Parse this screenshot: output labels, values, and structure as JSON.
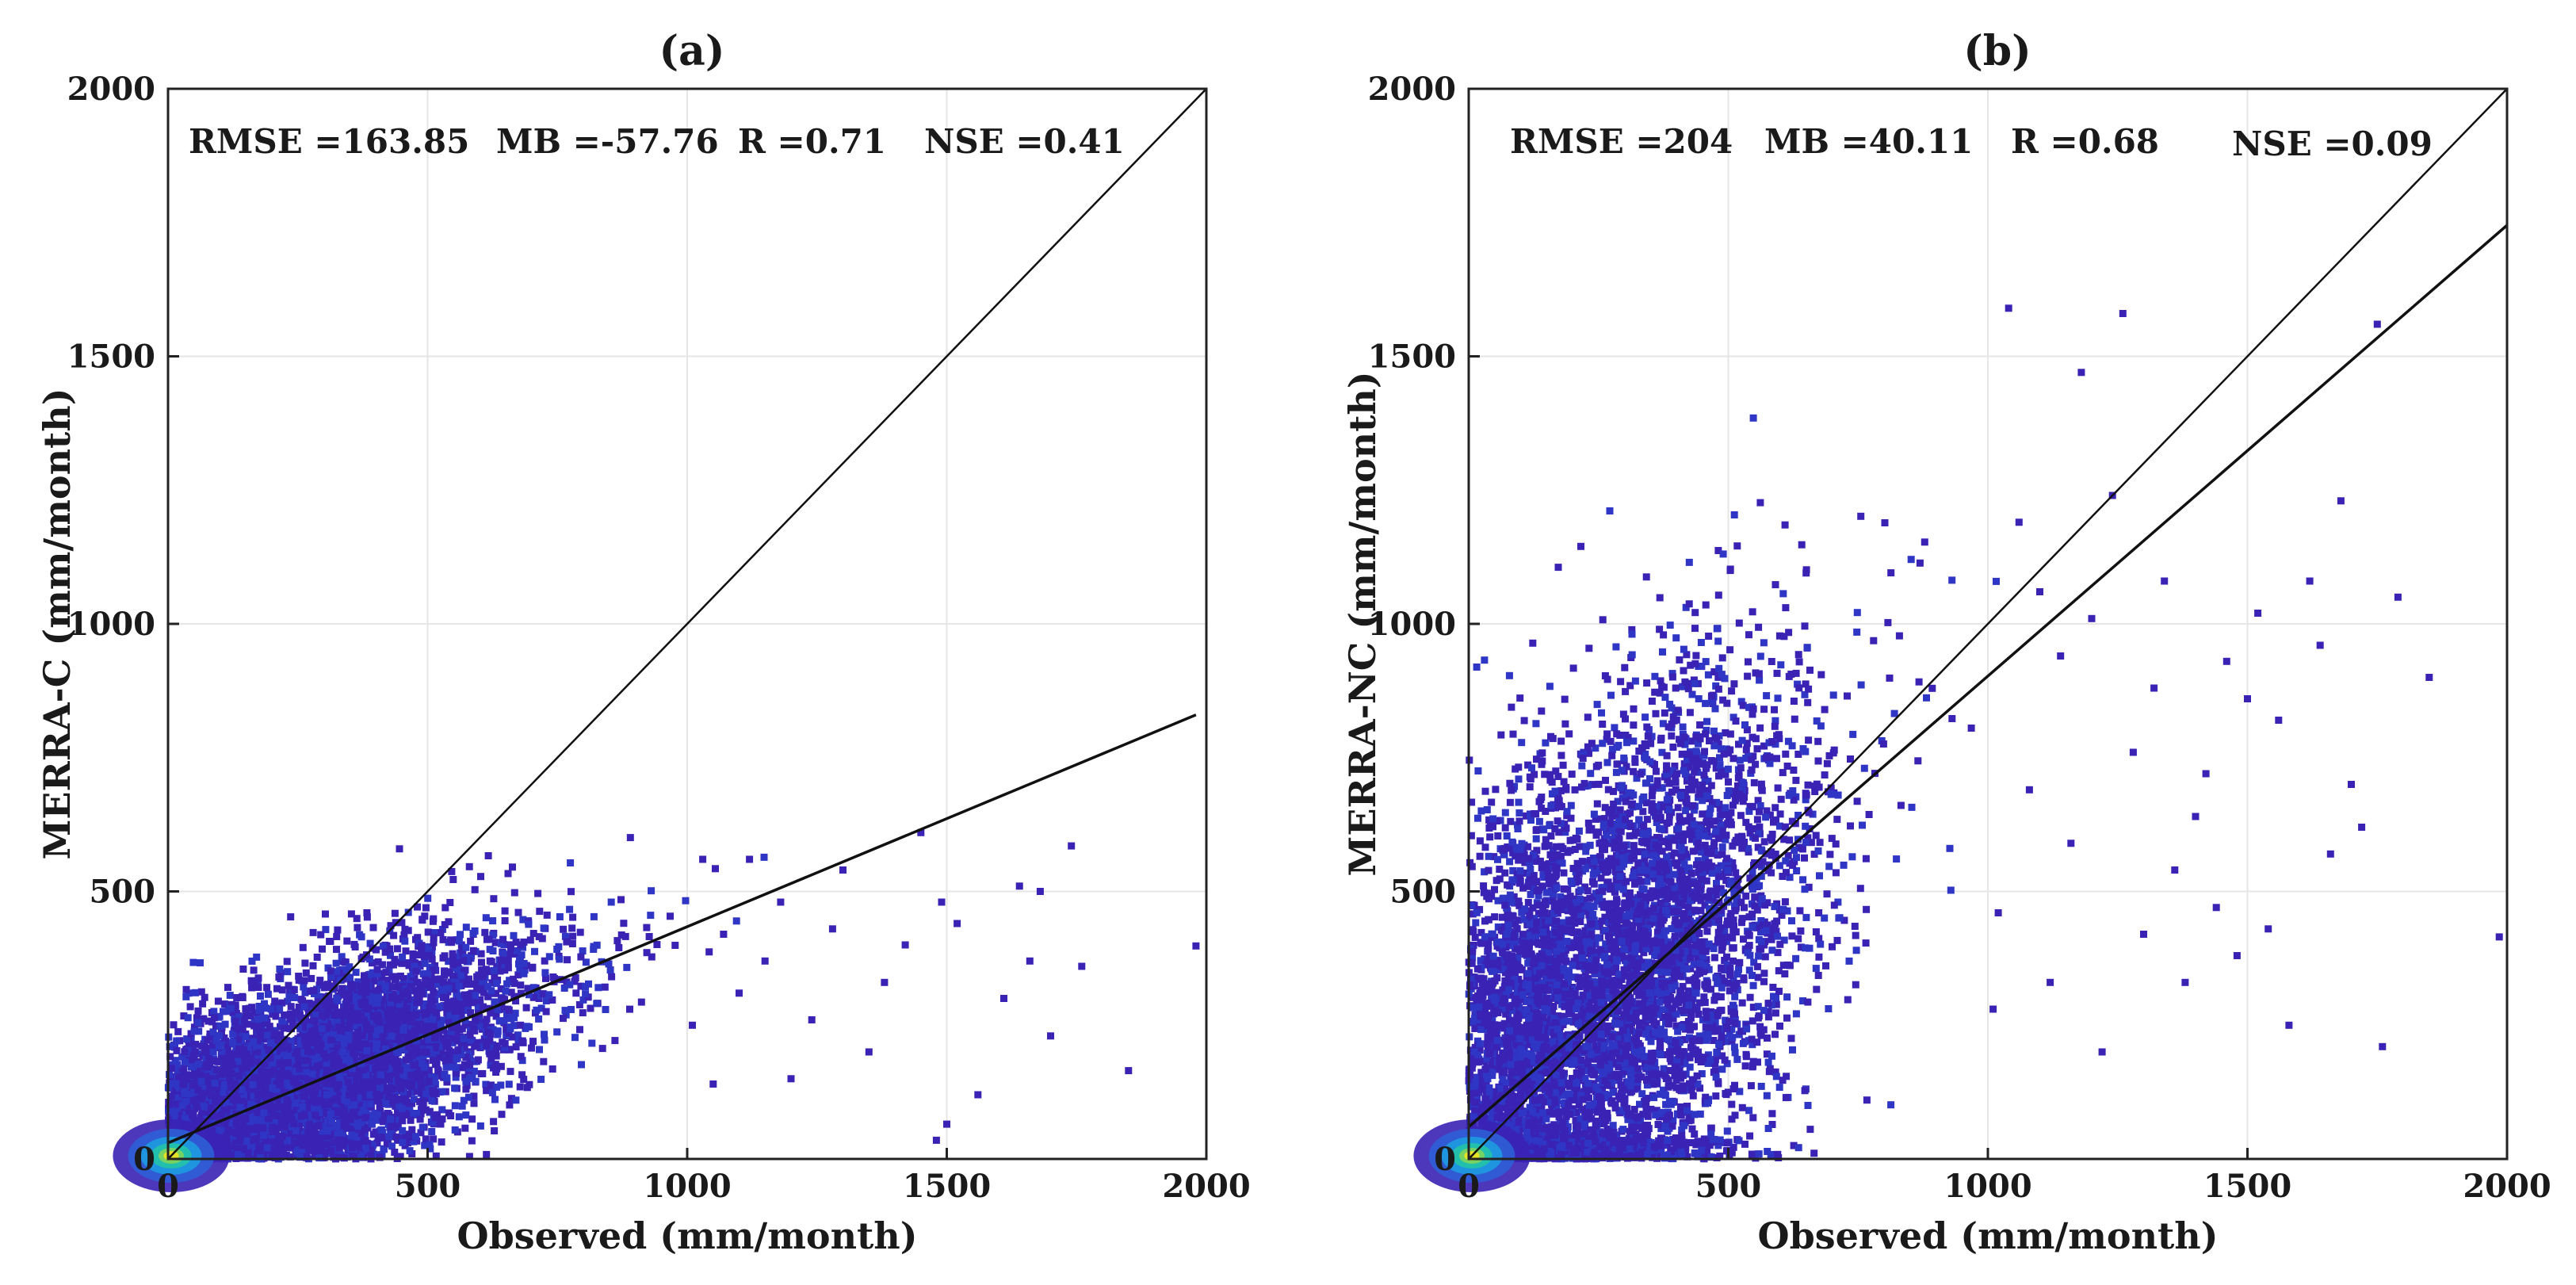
{
  "colors": {
    "point": "#3a22b5",
    "point_dense": "#2f35c4",
    "line": "#111111",
    "grid": "#e6e6e6",
    "density_scale": [
      "#3a22b5",
      "#2f5fd6",
      "#1e9be0",
      "#22c3a6",
      "#7fd45a",
      "#f2e21e"
    ]
  },
  "chart_data": [
    {
      "type": "scatter",
      "title": "(a)",
      "xlabel": "Observed (mm/month)",
      "ylabel": "MERRA-C (mm/month)",
      "xlim": [
        0,
        2000
      ],
      "ylim": [
        0,
        2000
      ],
      "xticks": [
        0,
        500,
        1000,
        1500,
        2000
      ],
      "yticks": [
        0,
        500,
        1000,
        1500,
        2000
      ],
      "grid": true,
      "stats": {
        "rmse": "RMSE =163.85",
        "mb": "MB =-57.76",
        "r": "R =0.71",
        "nse": "NSE =0.41"
      },
      "identity_line": {
        "x": [
          0,
          2000
        ],
        "y": [
          0,
          2000
        ]
      },
      "fit_line": {
        "x": [
          0,
          1980
        ],
        "y": [
          30,
          830
        ]
      },
      "point_cloud": {
        "n": 6000,
        "x_mean": 330,
        "x_sd": 210,
        "y_slope": 0.41,
        "y_intercept": 30,
        "y_sd": 95,
        "y_max": 660,
        "x_max": 1990
      },
      "outliers": [
        [
          1980,
          398
        ],
        [
          1850,
          165
        ],
        [
          1760,
          360
        ],
        [
          1740,
          585
        ],
        [
          1680,
          500
        ],
        [
          1660,
          370
        ],
        [
          1640,
          510
        ],
        [
          1610,
          300
        ],
        [
          1560,
          120
        ],
        [
          1520,
          440
        ],
        [
          1490,
          480
        ],
        [
          1450,
          610
        ],
        [
          1420,
          400
        ],
        [
          1380,
          330
        ],
        [
          1350,
          200
        ],
        [
          1300,
          540
        ],
        [
          1280,
          430
        ],
        [
          1240,
          260
        ],
        [
          1200,
          150
        ],
        [
          1180,
          480
        ],
        [
          1150,
          370
        ],
        [
          1120,
          560
        ],
        [
          1100,
          310
        ],
        [
          1070,
          420
        ],
        [
          1050,
          140
        ],
        [
          1030,
          560
        ],
        [
          1010,
          250
        ],
        [
          1500,
          65
        ],
        [
          1480,
          35
        ],
        [
          1700,
          230
        ]
      ]
    },
    {
      "type": "scatter",
      "title": "(b)",
      "xlabel": "Observed (mm/month)",
      "ylabel": "MERRA-NC (mm/month)",
      "xlim": [
        0,
        2000
      ],
      "ylim": [
        0,
        2000
      ],
      "xticks": [
        0,
        500,
        1000,
        1500,
        2000
      ],
      "yticks": [
        0,
        500,
        1000,
        1500,
        2000
      ],
      "grid": true,
      "stats": {
        "rmse": "RMSE =204",
        "mb": "MB =40.11",
        "r": "R =0.68",
        "nse": "NSE =0.09"
      },
      "identity_line": {
        "x": [
          0,
          2000
        ],
        "y": [
          0,
          2000
        ]
      },
      "fit_line": {
        "x": [
          0,
          2000
        ],
        "y": [
          60,
          1745
        ]
      },
      "point_cloud": {
        "n": 6500,
        "x_mean": 300,
        "x_sd": 210,
        "y_slope": 0.84,
        "y_intercept": 60,
        "y_sd": 250,
        "y_max": 1670,
        "x_max": 1990
      },
      "outliers": [
        [
          1985,
          415
        ],
        [
          1850,
          900
        ],
        [
          1790,
          1050
        ],
        [
          1760,
          210
        ],
        [
          1750,
          1560
        ],
        [
          1720,
          620
        ],
        [
          1700,
          700
        ],
        [
          1680,
          1230
        ],
        [
          1660,
          570
        ],
        [
          1640,
          960
        ],
        [
          1620,
          1080
        ],
        [
          1580,
          250
        ],
        [
          1560,
          820
        ],
        [
          1540,
          430
        ],
        [
          1520,
          1020
        ],
        [
          1500,
          860
        ],
        [
          1480,
          380
        ],
        [
          1460,
          930
        ],
        [
          1440,
          470
        ],
        [
          1420,
          720
        ],
        [
          1400,
          640
        ],
        [
          1380,
          330
        ],
        [
          1360,
          540
        ],
        [
          1340,
          1080
        ],
        [
          1320,
          880
        ],
        [
          1300,
          420
        ],
        [
          1280,
          760
        ],
        [
          1260,
          1580
        ],
        [
          1240,
          1240
        ],
        [
          1220,
          200
        ],
        [
          1200,
          1010
        ],
        [
          1180,
          1470
        ],
        [
          1160,
          590
        ],
        [
          1140,
          940
        ],
        [
          1120,
          330
        ],
        [
          1100,
          1060
        ],
        [
          1080,
          690
        ],
        [
          1060,
          1190
        ],
        [
          1040,
          1590
        ],
        [
          1020,
          460
        ],
        [
          1010,
          280
        ]
      ]
    }
  ]
}
